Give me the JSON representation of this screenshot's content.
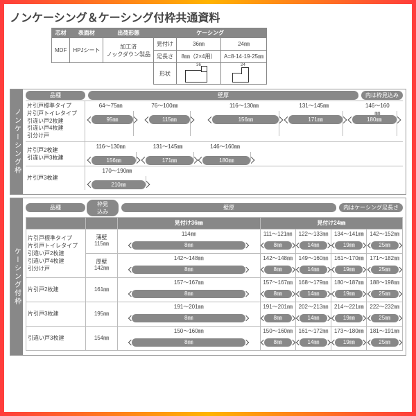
{
  "title": "ノンケーシング＆ケーシング付枠共通資料",
  "spec": {
    "h": [
      "芯材",
      "表面材",
      "出荷形態",
      "ケーシング"
    ],
    "v1": "MDF",
    "v2": "HPJシート",
    "v3a": "加工済",
    "v3b": "ノックダウン製品",
    "c1": "見付け",
    "c2": "足長さ",
    "c1a": "36㎜",
    "c1b": "24㎜",
    "c2a": "8㎜（2×4用）",
    "c2b": "A=8·14·19·25㎜",
    "shape": "形状",
    "d36": "36",
    "d24": "24"
  },
  "secA": {
    "tab": "ノンケーシング枠",
    "h1": "品種",
    "h2": "壁厚",
    "note": "内は枠見込み",
    "rows": [
      {
        "names": [
          "片引戸標準タイプ",
          "片引戸トイレタイプ",
          "引違い戸2枚建",
          "引違い戸4枚建",
          "引分け戸"
        ],
        "ranges": [
          "64～75㎜",
          "76～100㎜",
          "116～130㎜",
          "131～145㎜",
          "146～160㎜"
        ],
        "pills": [
          "95㎜",
          "115㎜",
          "156㎜",
          "171㎜",
          "180㎜"
        ],
        "rpos": [
          8,
          25,
          50,
          72,
          92
        ],
        "ppos": [
          [
            2,
            15
          ],
          [
            20,
            33
          ],
          [
            40,
            61
          ],
          [
            64,
            81
          ],
          [
            84,
            98
          ]
        ]
      },
      {
        "names": [
          "片引戸2枚建",
          "引違い戸3枚建"
        ],
        "ranges": [
          "116～130㎜",
          "131～145㎜",
          "146～160㎜"
        ],
        "pills": [
          "156㎜",
          "171㎜",
          "180㎜"
        ],
        "rpos": [
          8,
          26,
          44
        ],
        "ppos": [
          [
            2,
            16
          ],
          [
            19,
            34
          ],
          [
            37,
            52
          ]
        ]
      },
      {
        "names": [
          "片引戸3枚建"
        ],
        "ranges": [
          "170～190㎜"
        ],
        "pills": [
          "210㎜"
        ],
        "rpos": [
          10
        ],
        "ppos": [
          [
            2,
            19
          ]
        ]
      }
    ]
  },
  "secB": {
    "tab": "ケーシング付枠",
    "h1": "品種",
    "h2": "枠見込み",
    "h3": "壁厚",
    "note": "内はケーシング足長さ",
    "sub": [
      "見付け36㎜",
      "見付け24㎜"
    ],
    "rows": [
      {
        "name": "片引戸標準タイプ\n片引戸トイレタイプ\n引違い戸2枚建\n引違い戸4枚建\n引分け戸",
        "blocks": [
          {
            "wk": "薄壁\n115㎜",
            "v": [
              "114㎜",
              "111～121㎜",
              "122～133㎜",
              "134～141㎜",
              "142～152㎜"
            ],
            "p": [
              "8㎜",
              "8㎜",
              "14㎜",
              "19㎜",
              "25㎜"
            ]
          },
          {
            "wk": "厚壁\n142㎜",
            "v": [
              "142～148㎜",
              "142～148㎜",
              "149～160㎜",
              "161～170㎜",
              "171～182㎜"
            ],
            "p": [
              "8㎜",
              "8㎜",
              "14㎜",
              "19㎜",
              "25㎜"
            ]
          }
        ]
      },
      {
        "name": "片引戸2枚建",
        "blocks": [
          {
            "wk": "161㎜",
            "v": [
              "157～167㎜",
              "157～167㎜",
              "168～179㎜",
              "180～187㎜",
              "188～198㎜"
            ],
            "p": [
              "8㎜",
              "8㎜",
              "14㎜",
              "19㎜",
              "25㎜"
            ]
          }
        ]
      },
      {
        "name": "片引戸3枚建",
        "blocks": [
          {
            "wk": "195㎜",
            "v": [
              "191～201㎜",
              "191～201㎜",
              "202～213㎜",
              "214～221㎜",
              "222～232㎜"
            ],
            "p": [
              "8㎜",
              "8㎜",
              "14㎜",
              "19㎜",
              "25㎜"
            ]
          }
        ]
      },
      {
        "name": "引違い戸3枚建",
        "blocks": [
          {
            "wk": "154㎜",
            "v": [
              "150～160㎜",
              "150～160㎜",
              "161～172㎜",
              "173～180㎜",
              "181～191㎜"
            ],
            "p": [
              "8㎜",
              "8㎜",
              "14㎜",
              "19㎜",
              "25㎜"
            ]
          }
        ]
      }
    ]
  }
}
